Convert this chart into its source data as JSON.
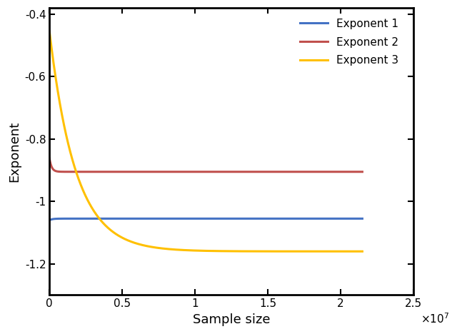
{
  "title": "",
  "xlabel": "Sample size",
  "ylabel": "Exponent",
  "xlim": [
    0,
    25000000.0
  ],
  "ylim": [
    -1.3,
    -0.38
  ],
  "xticks": [
    0,
    5000000,
    10000000,
    15000000,
    20000000,
    25000000
  ],
  "xtick_labels": [
    "0",
    "0.5",
    "1",
    "1.5",
    "2",
    "2.5"
  ],
  "yticks": [
    -1.2,
    -1.0,
    -0.8,
    -0.6,
    -0.4
  ],
  "ytick_labels": [
    "-1.2",
    "-1",
    "-0.8",
    "-0.6",
    "-0.4"
  ],
  "line1_color": "#4472C4",
  "line2_color": "#C0504D",
  "line3_color": "#FFC000",
  "line1_label": "Exponent 1",
  "line2_label": "Exponent 2",
  "line3_label": "Exponent 3",
  "line1_asymptote": -1.055,
  "line1_start": -1.06,
  "line1_k": 200000,
  "line2_asymptote": -0.905,
  "line2_start": -0.862,
  "line2_k": 150000,
  "line3_asymptote": -1.16,
  "line3_start": -0.455,
  "line3_k": 1800000,
  "x_max": 21500000.0,
  "linewidth": 2.2,
  "legend_fontsize": 11,
  "axis_fontsize": 13,
  "tick_fontsize": 11,
  "background_color": "#ffffff",
  "spine_color": "#000000"
}
